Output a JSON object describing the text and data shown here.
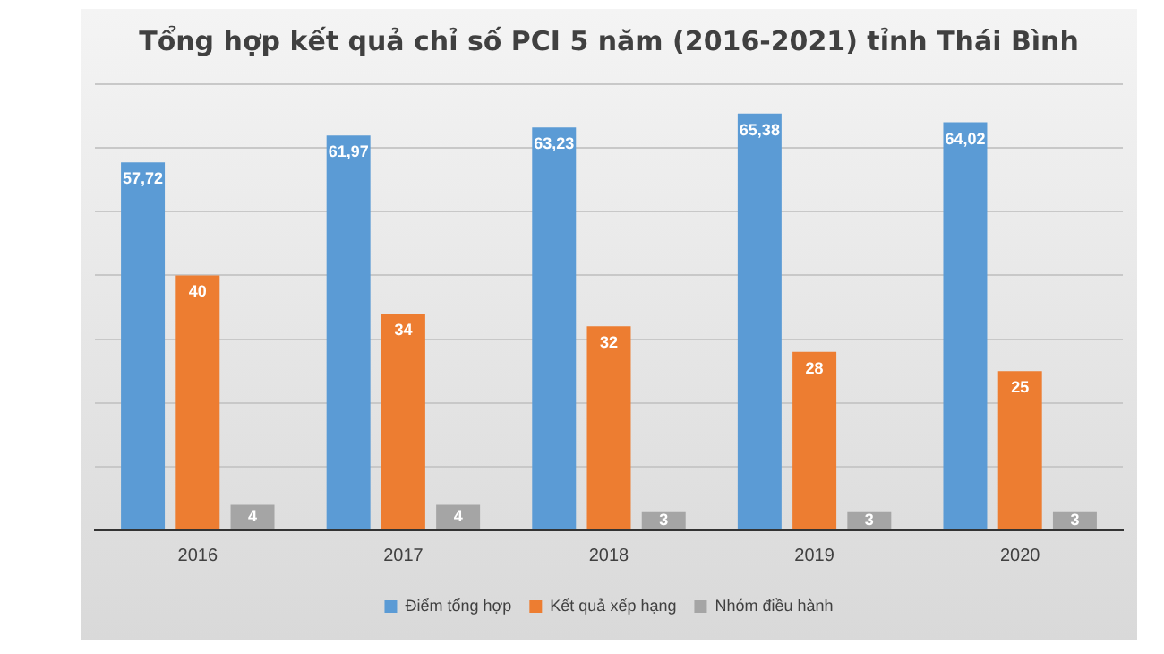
{
  "chart_data": {
    "type": "bar",
    "title": "Tổng hợp kết quả chỉ số PCI 5 năm (2016-2021) tỉnh Thái Bình",
    "categories": [
      "2016",
      "2017",
      "2018",
      "2019",
      "2020"
    ],
    "series": [
      {
        "name": "Điểm tổng hợp",
        "color": "#5b9bd5",
        "values": [
          57.72,
          61.97,
          63.23,
          65.38,
          64.02
        ],
        "value_labels": [
          "57,72",
          "61,97",
          "63,23",
          "65,38",
          "64,02"
        ]
      },
      {
        "name": "Kết quả xếp hạng",
        "color": "#ed7d31",
        "values": [
          40,
          34,
          32,
          28,
          25
        ],
        "value_labels": [
          "40",
          "34",
          "32",
          "28",
          "25"
        ]
      },
      {
        "name": "Nhóm điều hành",
        "color": "#a5a5a5",
        "values": [
          4,
          4,
          3,
          3,
          3
        ],
        "value_labels": [
          "4",
          "4",
          "3",
          "3",
          "3"
        ]
      }
    ],
    "ylim": [
      0,
      70
    ],
    "yticks": [
      0,
      10,
      20,
      30,
      40,
      50,
      60,
      70
    ],
    "tick_labels": "x",
    "grid": "y",
    "legend": "bottom"
  }
}
